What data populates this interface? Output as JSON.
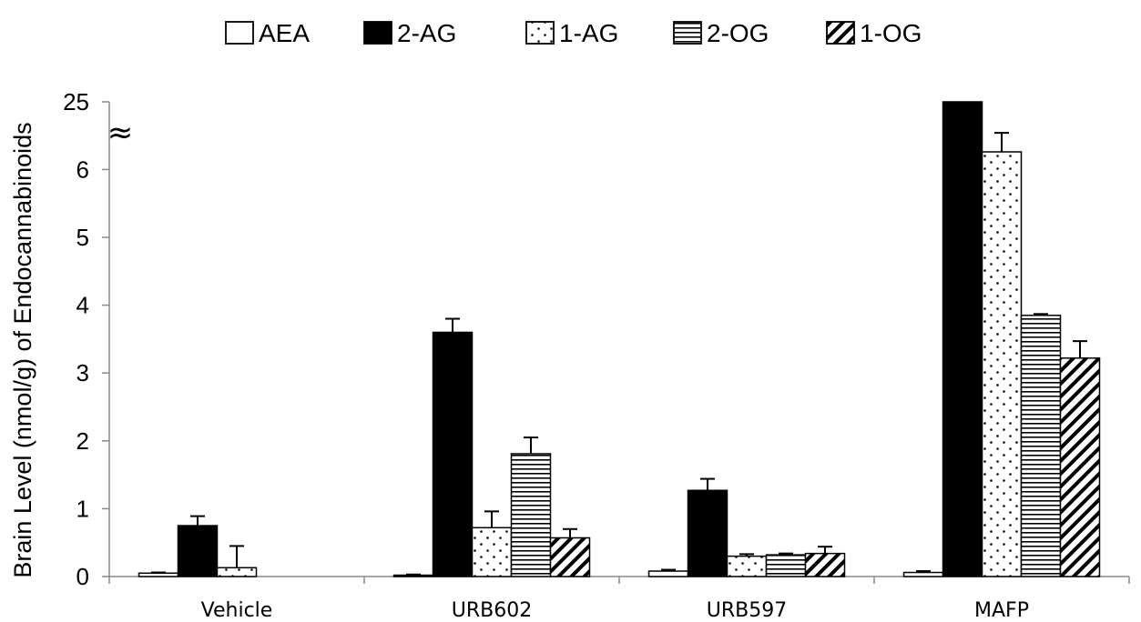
{
  "chart_data": {
    "type": "bar",
    "title": "",
    "xlabel": "",
    "ylabel": "Brain Level (nmol/g) of Endocannabinoids",
    "categories": [
      "Vehicle",
      "URB602",
      "URB597",
      "MAFP"
    ],
    "y_ticks": [
      "0",
      "1",
      "2",
      "3",
      "4",
      "5",
      "6",
      "25"
    ],
    "axis_break": {
      "symbol": "≈",
      "between": [
        6,
        25
      ]
    },
    "ylim": [
      0,
      25
    ],
    "legend_position": "top",
    "grid": false,
    "series": [
      {
        "name": "AEA",
        "fill": "white",
        "values": [
          0.05,
          0.02,
          0.08,
          0.06
        ],
        "errors": [
          0.01,
          0.01,
          0.02,
          0.02
        ]
      },
      {
        "name": "2-AG",
        "fill": "solid",
        "values": [
          0.75,
          3.6,
          1.27,
          25
        ],
        "errors": [
          0.14,
          0.2,
          0.17,
          0
        ]
      },
      {
        "name": "1-AG",
        "fill": "dots",
        "values": [
          0.13,
          0.72,
          0.3,
          6.26
        ],
        "errors": [
          0.32,
          0.24,
          0.03,
          0.28
        ]
      },
      {
        "name": "2-OG",
        "fill": "horizontal-lines",
        "values": [
          null,
          1.81,
          0.32,
          3.85
        ],
        "errors": [
          null,
          0.24,
          0.02,
          0.02
        ]
      },
      {
        "name": "1-OG",
        "fill": "diagonal-lines",
        "values": [
          null,
          0.57,
          0.34,
          3.22
        ],
        "errors": [
          null,
          0.13,
          0.1,
          0.25
        ]
      }
    ],
    "colors": {
      "bar_stroke": "#000000",
      "solid_fill": "#000000",
      "axis": "#888888"
    }
  }
}
